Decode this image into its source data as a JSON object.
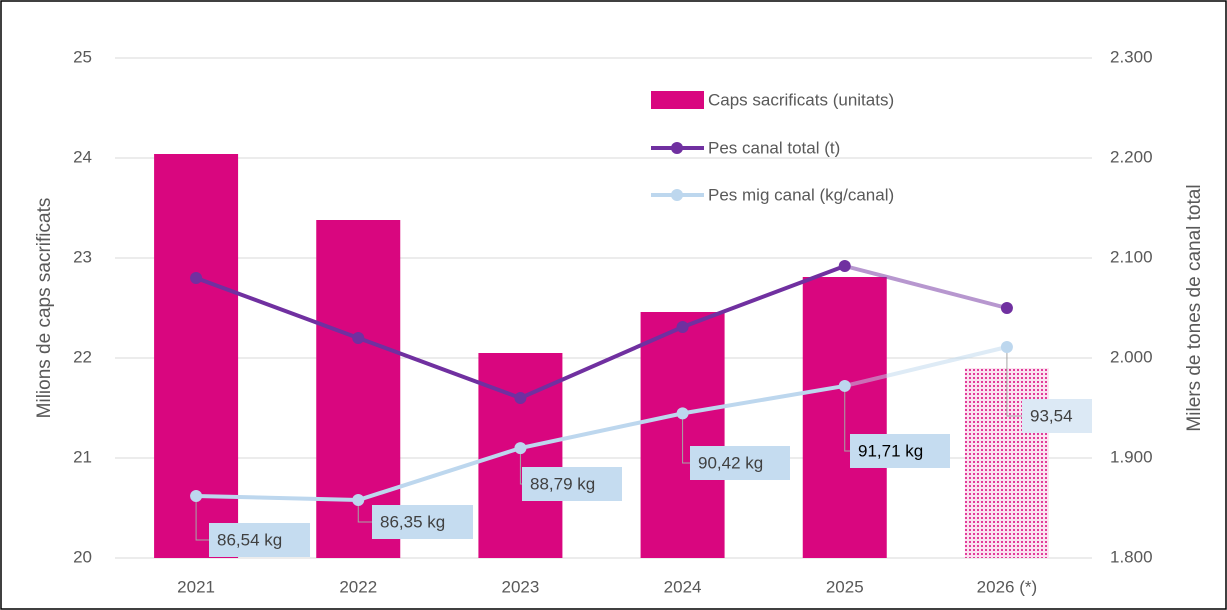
{
  "chart_data": {
    "type": "bar-line",
    "categories": [
      "2021",
      "2022",
      "2023",
      "2024",
      "2025",
      "2026 (*)"
    ],
    "ylabel": "Milions de caps sacrificats",
    "y2label": "Milers de tones de canal total",
    "ylim": [
      20,
      25
    ],
    "yticks": [
      20,
      21,
      22,
      23,
      24,
      25
    ],
    "y2lim": [
      1800,
      2300
    ],
    "y2ticks": [
      {
        "value": 1800,
        "label": "1.800"
      },
      {
        "value": 1900,
        "label": "1.900"
      },
      {
        "value": 2000,
        "label": "2.000"
      },
      {
        "value": 2100,
        "label": "2.100"
      },
      {
        "value": 2200,
        "label": "2.200"
      },
      {
        "value": 2300,
        "label": "2.300"
      }
    ],
    "grid": true,
    "series": [
      {
        "name": "Caps sacrificats (unitats)",
        "kind": "bar",
        "color": "#d9067f",
        "values": [
          24.04,
          23.38,
          22.05,
          22.46,
          22.81,
          21.9
        ]
      },
      {
        "name": "Pes canal total (t)",
        "kind": "line",
        "axis": "y2",
        "color": "#7030a0",
        "values": [
          2080,
          2020,
          1960,
          2031,
          2092,
          2050
        ]
      },
      {
        "name": "Pes mig canal (kg/canal)",
        "kind": "line",
        "color": "#bdd7ee",
        "values": [
          86.54,
          86.35,
          88.79,
          90.42,
          91.71,
          93.54
        ],
        "value_labels": [
          "86,54 kg",
          "86,35 kg",
          "88,79 kg",
          "90,42 kg",
          "91,71 kg",
          "93,54"
        ]
      }
    ]
  }
}
